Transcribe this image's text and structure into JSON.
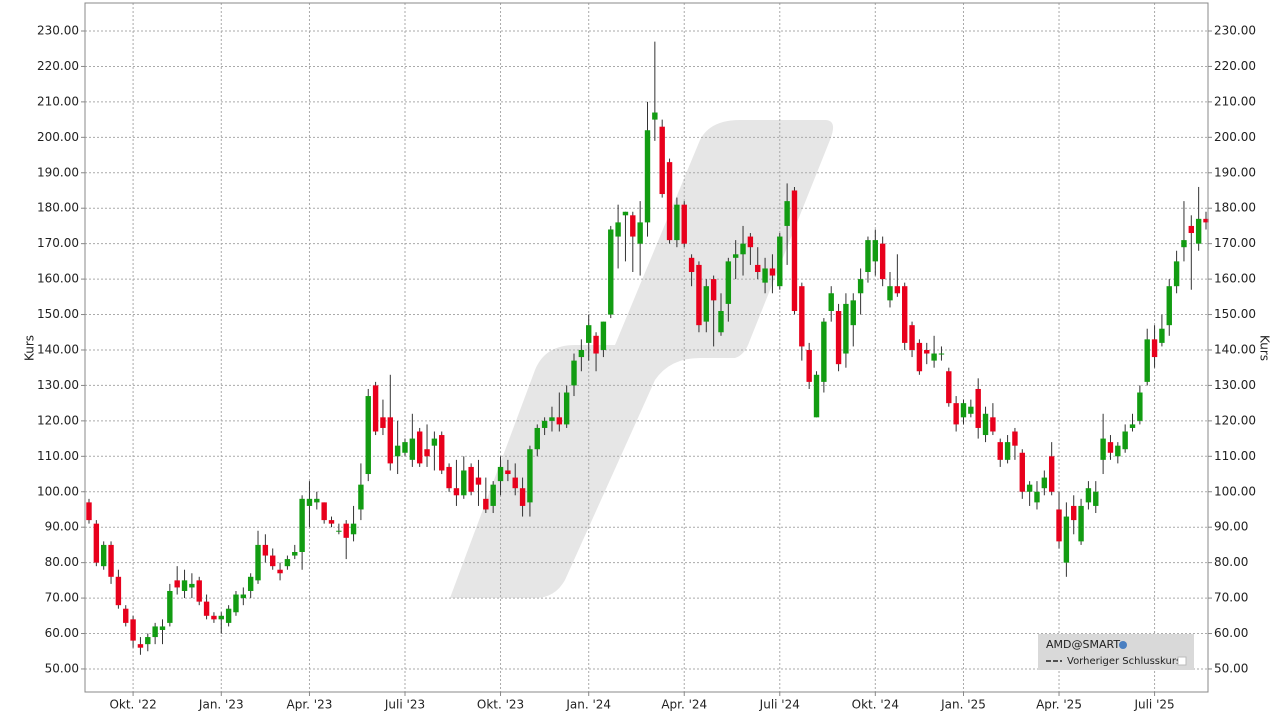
{
  "chart_data": {
    "type": "candlestick",
    "y_label": "Kurs",
    "ylim": [
      43.5,
      237.9
    ],
    "yticks": [
      {
        "value": 50,
        "label": "50.00"
      },
      {
        "value": 60,
        "label": "60.00"
      },
      {
        "value": 70,
        "label": "70.00"
      },
      {
        "value": 80,
        "label": "80.00"
      },
      {
        "value": 90,
        "label": "90.00"
      },
      {
        "value": 100,
        "label": "100.00"
      },
      {
        "value": 110,
        "label": "110.00"
      },
      {
        "value": 120,
        "label": "120.00"
      },
      {
        "value": 130,
        "label": "130.00"
      },
      {
        "value": 140,
        "label": "140.00"
      },
      {
        "value": 150,
        "label": "150.00"
      },
      {
        "value": 160,
        "label": "160.00"
      },
      {
        "value": 170,
        "label": "170.00"
      },
      {
        "value": 180,
        "label": "180.00"
      },
      {
        "value": 190,
        "label": "190.00"
      },
      {
        "value": 200,
        "label": "200.00"
      },
      {
        "value": 210,
        "label": "210.00"
      },
      {
        "value": 220,
        "label": "220.00"
      },
      {
        "value": 230,
        "label": "230.00"
      }
    ],
    "grid": true,
    "x_tick_labels": [
      [
        6,
        "Okt. '22"
      ],
      [
        18,
        "Jan. '23"
      ],
      [
        30,
        "Apr. '23"
      ],
      [
        43,
        "Juli '23"
      ],
      [
        56,
        "Okt. '23"
      ],
      [
        68,
        "Jan. '24"
      ],
      [
        81,
        "Apr. '24"
      ],
      [
        94,
        "Juli '24"
      ],
      [
        107,
        "Okt. '24"
      ],
      [
        119,
        "Jan. '25"
      ],
      [
        132,
        "Apr. '25"
      ],
      [
        145,
        "Juli '25"
      ]
    ],
    "legend_position": "lower right",
    "reference_line": {
      "name": "Vorheriger Schlusskurs"
    },
    "series": [
      {
        "name": "AMD@SMART",
        "up_color": "#129c12",
        "down_color": "#e8001c",
        "ohlc": [
          [
            97,
            98,
            91,
            92
          ],
          [
            91,
            92,
            79,
            80
          ],
          [
            79,
            86,
            78,
            85
          ],
          [
            85,
            86,
            74,
            76
          ],
          [
            76,
            78,
            67,
            68
          ],
          [
            67,
            68,
            62,
            63
          ],
          [
            64,
            65,
            56,
            58
          ],
          [
            57,
            59,
            54,
            56
          ],
          [
            57,
            60,
            55,
            59
          ],
          [
            59,
            63,
            57,
            62
          ],
          [
            61,
            64,
            57,
            62
          ],
          [
            63,
            74,
            62,
            72
          ],
          [
            75,
            79,
            71,
            73
          ],
          [
            72,
            78,
            70,
            75
          ],
          [
            73,
            77,
            70,
            74
          ],
          [
            75,
            76,
            68,
            69
          ],
          [
            69,
            71,
            64,
            65
          ],
          [
            65,
            66,
            63,
            64
          ],
          [
            64,
            66,
            60,
            65
          ],
          [
            63,
            68,
            62,
            67
          ],
          [
            66,
            72,
            65,
            71
          ],
          [
            70,
            73,
            68,
            71
          ],
          [
            72,
            77,
            70,
            76
          ],
          [
            75,
            89,
            74,
            85
          ],
          [
            85,
            88,
            80,
            82
          ],
          [
            82,
            84,
            78,
            79
          ],
          [
            78,
            80,
            75,
            77
          ],
          [
            79,
            82,
            78,
            81
          ],
          [
            82,
            85,
            81,
            83
          ],
          [
            83,
            99,
            78,
            98
          ],
          [
            96,
            103,
            90,
            98
          ],
          [
            97,
            100,
            95,
            98
          ],
          [
            97,
            97,
            91,
            92
          ],
          [
            92,
            93,
            90,
            91
          ],
          [
            89,
            91,
            88,
            89
          ],
          [
            91,
            92,
            81,
            87
          ],
          [
            88,
            96,
            86,
            91
          ],
          [
            95,
            108,
            92,
            102
          ],
          [
            105,
            129,
            103,
            127
          ],
          [
            130,
            131,
            116,
            117
          ],
          [
            121,
            126,
            116,
            118
          ],
          [
            121,
            133,
            106,
            108
          ],
          [
            110,
            120,
            105,
            113
          ],
          [
            111,
            115,
            110,
            114
          ],
          [
            109,
            122,
            107,
            115
          ],
          [
            117,
            118,
            107,
            108
          ],
          [
            112,
            119,
            107,
            110
          ],
          [
            113,
            117,
            106,
            115
          ],
          [
            116,
            117,
            105,
            106
          ],
          [
            107,
            108,
            100,
            101
          ],
          [
            101,
            109,
            96,
            99
          ],
          [
            99,
            110,
            98,
            106
          ],
          [
            107,
            108,
            99,
            100
          ],
          [
            104,
            109,
            96,
            102
          ],
          [
            98,
            104,
            94,
            95
          ],
          [
            96,
            103,
            94,
            102
          ],
          [
            103,
            110,
            99,
            107
          ],
          [
            106,
            109,
            103,
            105
          ],
          [
            104,
            108,
            99,
            101
          ],
          [
            101,
            104,
            93,
            96
          ],
          [
            97,
            113,
            93,
            112
          ],
          [
            112,
            119,
            110,
            118
          ],
          [
            118,
            121,
            116,
            120
          ],
          [
            120,
            124,
            117,
            121
          ],
          [
            121,
            128,
            117,
            119
          ],
          [
            119,
            130,
            118,
            128
          ],
          [
            130,
            139,
            127,
            137
          ],
          [
            138,
            143,
            134,
            140
          ],
          [
            142,
            150,
            137,
            147
          ],
          [
            144,
            145,
            134,
            139
          ],
          [
            140,
            148,
            138,
            148
          ],
          [
            150,
            175,
            149,
            174
          ],
          [
            172,
            181,
            163,
            176
          ],
          [
            178,
            179,
            165,
            179
          ],
          [
            178,
            179,
            162,
            172
          ],
          [
            170,
            182,
            161,
            176
          ],
          [
            176,
            210,
            172,
            202
          ],
          [
            205,
            227,
            199,
            207
          ],
          [
            203,
            205,
            183,
            184
          ],
          [
            193,
            194,
            170,
            171
          ],
          [
            171,
            183,
            169,
            181
          ],
          [
            181,
            182,
            169,
            170
          ],
          [
            166,
            167,
            158,
            162
          ],
          [
            164,
            165,
            145,
            147
          ],
          [
            148,
            160,
            145,
            158
          ],
          [
            160,
            161,
            141,
            154
          ],
          [
            145,
            156,
            144,
            151
          ],
          [
            153,
            166,
            148,
            165
          ],
          [
            166,
            171,
            160,
            167
          ],
          [
            167,
            175,
            161,
            170
          ],
          [
            172,
            173,
            164,
            169
          ],
          [
            164,
            169,
            160,
            162
          ],
          [
            159,
            166,
            156,
            163
          ],
          [
            163,
            167,
            156,
            161
          ],
          [
            158,
            173,
            157,
            172
          ],
          [
            175,
            187,
            164,
            182
          ],
          [
            185,
            186,
            150,
            151
          ],
          [
            158,
            159,
            137,
            141
          ],
          [
            140,
            142,
            129,
            131
          ],
          [
            121,
            134,
            121,
            133
          ],
          [
            131,
            149,
            128,
            148
          ],
          [
            151,
            158,
            148,
            156
          ],
          [
            151,
            153,
            134,
            136
          ],
          [
            139,
            156,
            135,
            153
          ],
          [
            147,
            156,
            141,
            154
          ],
          [
            156,
            163,
            150,
            160
          ],
          [
            162,
            172,
            159,
            171
          ],
          [
            165,
            174,
            161,
            171
          ],
          [
            170,
            172,
            158,
            160
          ],
          [
            154,
            162,
            152,
            158
          ],
          [
            158,
            167,
            155,
            156
          ],
          [
            158,
            159,
            140,
            142
          ],
          [
            147,
            148,
            138,
            140
          ],
          [
            142,
            143,
            133,
            134
          ],
          [
            140,
            142,
            136,
            139
          ],
          [
            137,
            144,
            135,
            139
          ],
          [
            139,
            141,
            137,
            139
          ],
          [
            134,
            135,
            124,
            125
          ],
          [
            125,
            127,
            117,
            119
          ],
          [
            121,
            126,
            119,
            125
          ],
          [
            122,
            126,
            121,
            124
          ],
          [
            129,
            132,
            115,
            118
          ],
          [
            116,
            124,
            114,
            122
          ],
          [
            121,
            125,
            116,
            117
          ],
          [
            114,
            115,
            107,
            109
          ],
          [
            109,
            116,
            108,
            114
          ],
          [
            117,
            118,
            109,
            113
          ],
          [
            111,
            112,
            98,
            100
          ],
          [
            100,
            103,
            96,
            102
          ],
          [
            97,
            103,
            95,
            100
          ],
          [
            101,
            106,
            99,
            104
          ],
          [
            110,
            114,
            99,
            100
          ],
          [
            95,
            100,
            84,
            86
          ],
          [
            80,
            97,
            76,
            93
          ],
          [
            96,
            99,
            88,
            92
          ],
          [
            86,
            98,
            85,
            96
          ],
          [
            97,
            103,
            95,
            101
          ],
          [
            96,
            103,
            94,
            100
          ],
          [
            109,
            122,
            105,
            115
          ],
          [
            114,
            116,
            109,
            111
          ],
          [
            110,
            114,
            108,
            113
          ],
          [
            112,
            119,
            111,
            117
          ],
          [
            118,
            122,
            117,
            119
          ],
          [
            120,
            130,
            119,
            128
          ],
          [
            131,
            146,
            130,
            143
          ],
          [
            143,
            147,
            135,
            138
          ],
          [
            142,
            150,
            141,
            146
          ],
          [
            147,
            160,
            144,
            158
          ],
          [
            158,
            168,
            156,
            165
          ],
          [
            169,
            182,
            165,
            171
          ],
          [
            175,
            178,
            157,
            173
          ],
          [
            170,
            186,
            168,
            177
          ],
          [
            177,
            179,
            174,
            176
          ]
        ]
      }
    ]
  }
}
